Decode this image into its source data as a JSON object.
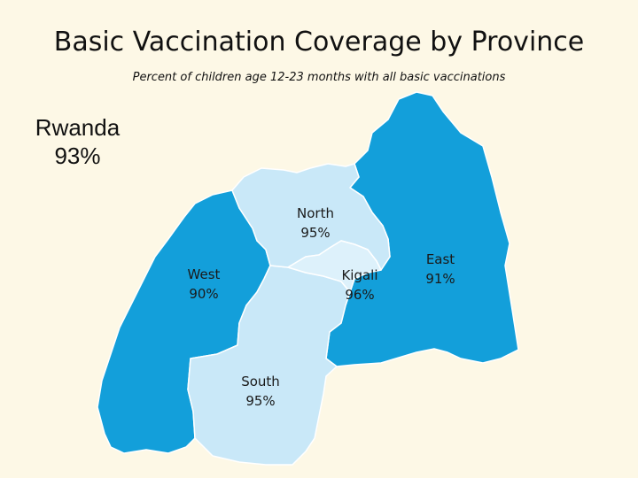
{
  "title": "Basic Vaccination Coverage by Province",
  "subtitle": "Percent of children age 12-23 months with all basic vaccinations",
  "national": {
    "name": "Rwanda",
    "value": "93%"
  },
  "provinces": {
    "north": {
      "name": "North",
      "value": "95%",
      "color": "#c9e8f8"
    },
    "kigali": {
      "name": "Kigali",
      "value": "96%",
      "color": "#ddf1fb"
    },
    "west": {
      "name": "West",
      "value": "90%",
      "color": "#139fda"
    },
    "south": {
      "name": "South",
      "value": "95%",
      "color": "#c9e8f8"
    },
    "east": {
      "name": "East",
      "value": "91%",
      "color": "#139fda"
    }
  },
  "colors": {
    "background": "#fdf8e6",
    "border": "#ffffff"
  }
}
